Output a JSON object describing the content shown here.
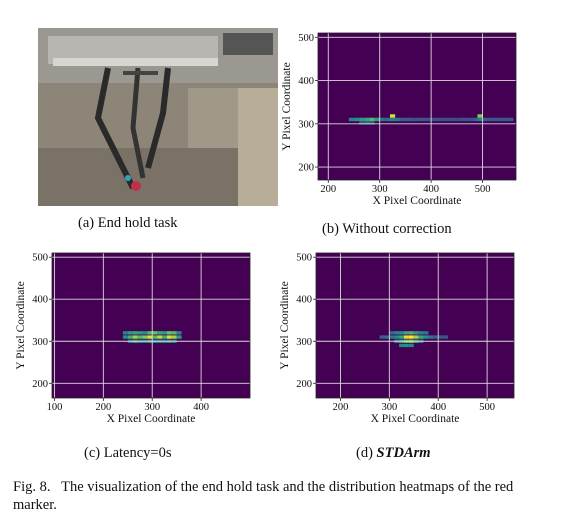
{
  "subcaptions": {
    "a": "(a) End hold task",
    "b": "(b) Without correction",
    "c": "(c) Latency=0s",
    "d_prefix": "(d) ",
    "d_italic": "STDArm"
  },
  "figure_caption": {
    "label": "Fig. 8.",
    "text": "The visualization of the end hold task and the distribution heatmaps of the red marker."
  },
  "colors": {
    "background": "#440154",
    "grid": "#d9d9d9",
    "colormap": [
      "#440154",
      "#3b528b",
      "#21918c",
      "#5ec962",
      "#fde725"
    ]
  },
  "chart_data": [
    {
      "panel": "b",
      "type": "heatmap",
      "xlabel": "X Pixel Coordinate",
      "ylabel": "Y Pixel Coordinate",
      "xlim": [
        180,
        565
      ],
      "ylim": [
        170,
        510
      ],
      "xticks": [
        200,
        300,
        400,
        500
      ],
      "yticks": [
        200,
        300,
        400,
        500
      ],
      "grid": true,
      "cells_note": "intensity 0-1",
      "cells": [
        {
          "x": 245,
          "y": 310,
          "v": 0.45
        },
        {
          "x": 255,
          "y": 310,
          "v": 0.5
        },
        {
          "x": 265,
          "y": 310,
          "v": 0.55
        },
        {
          "x": 275,
          "y": 310,
          "v": 0.6
        },
        {
          "x": 285,
          "y": 310,
          "v": 0.7
        },
        {
          "x": 295,
          "y": 310,
          "v": 0.55
        },
        {
          "x": 305,
          "y": 310,
          "v": 0.4
        },
        {
          "x": 315,
          "y": 310,
          "v": 0.35
        },
        {
          "x": 325,
          "y": 318,
          "v": 0.95
        },
        {
          "x": 325,
          "y": 310,
          "v": 0.45
        },
        {
          "x": 335,
          "y": 310,
          "v": 0.4
        },
        {
          "x": 345,
          "y": 310,
          "v": 0.3
        },
        {
          "x": 355,
          "y": 310,
          "v": 0.3
        },
        {
          "x": 365,
          "y": 310,
          "v": 0.28
        },
        {
          "x": 375,
          "y": 310,
          "v": 0.28
        },
        {
          "x": 385,
          "y": 310,
          "v": 0.26
        },
        {
          "x": 395,
          "y": 310,
          "v": 0.25
        },
        {
          "x": 405,
          "y": 310,
          "v": 0.25
        },
        {
          "x": 415,
          "y": 310,
          "v": 0.25
        },
        {
          "x": 425,
          "y": 310,
          "v": 0.24
        },
        {
          "x": 435,
          "y": 310,
          "v": 0.24
        },
        {
          "x": 445,
          "y": 310,
          "v": 0.24
        },
        {
          "x": 455,
          "y": 310,
          "v": 0.24
        },
        {
          "x": 465,
          "y": 310,
          "v": 0.25
        },
        {
          "x": 475,
          "y": 310,
          "v": 0.26
        },
        {
          "x": 485,
          "y": 310,
          "v": 0.3
        },
        {
          "x": 495,
          "y": 318,
          "v": 0.8
        },
        {
          "x": 495,
          "y": 310,
          "v": 0.45
        },
        {
          "x": 505,
          "y": 310,
          "v": 0.3
        },
        {
          "x": 515,
          "y": 310,
          "v": 0.28
        },
        {
          "x": 525,
          "y": 310,
          "v": 0.28
        },
        {
          "x": 535,
          "y": 310,
          "v": 0.28
        },
        {
          "x": 545,
          "y": 310,
          "v": 0.28
        },
        {
          "x": 555,
          "y": 310,
          "v": 0.28
        },
        {
          "x": 265,
          "y": 302,
          "v": 0.3
        },
        {
          "x": 275,
          "y": 302,
          "v": 0.35
        },
        {
          "x": 285,
          "y": 302,
          "v": 0.3
        }
      ]
    },
    {
      "panel": "c",
      "type": "heatmap",
      "xlabel": "X Pixel Coordinate",
      "ylabel": "Y Pixel Coordinate",
      "xlim": [
        95,
        500
      ],
      "ylim": [
        165,
        510
      ],
      "xticks": [
        100,
        200,
        300,
        400
      ],
      "yticks": [
        200,
        300,
        400,
        500
      ],
      "grid": true,
      "cells": [
        {
          "x": 245,
          "y": 320,
          "v": 0.45
        },
        {
          "x": 255,
          "y": 320,
          "v": 0.55
        },
        {
          "x": 265,
          "y": 320,
          "v": 0.6
        },
        {
          "x": 275,
          "y": 320,
          "v": 0.55
        },
        {
          "x": 285,
          "y": 320,
          "v": 0.5
        },
        {
          "x": 295,
          "y": 320,
          "v": 0.7
        },
        {
          "x": 305,
          "y": 320,
          "v": 0.75
        },
        {
          "x": 315,
          "y": 320,
          "v": 0.6
        },
        {
          "x": 325,
          "y": 320,
          "v": 0.55
        },
        {
          "x": 335,
          "y": 320,
          "v": 0.75
        },
        {
          "x": 345,
          "y": 320,
          "v": 0.7
        },
        {
          "x": 355,
          "y": 320,
          "v": 0.45
        },
        {
          "x": 245,
          "y": 310,
          "v": 0.5
        },
        {
          "x": 255,
          "y": 310,
          "v": 0.65
        },
        {
          "x": 265,
          "y": 310,
          "v": 0.85
        },
        {
          "x": 275,
          "y": 310,
          "v": 0.7
        },
        {
          "x": 285,
          "y": 310,
          "v": 0.8
        },
        {
          "x": 295,
          "y": 310,
          "v": 0.95
        },
        {
          "x": 305,
          "y": 310,
          "v": 0.7
        },
        {
          "x": 315,
          "y": 310,
          "v": 0.9
        },
        {
          "x": 325,
          "y": 310,
          "v": 0.65
        },
        {
          "x": 335,
          "y": 310,
          "v": 0.95
        },
        {
          "x": 345,
          "y": 310,
          "v": 0.85
        },
        {
          "x": 355,
          "y": 310,
          "v": 0.55
        },
        {
          "x": 255,
          "y": 300,
          "v": 0.45
        },
        {
          "x": 265,
          "y": 300,
          "v": 0.6
        },
        {
          "x": 275,
          "y": 300,
          "v": 0.5
        },
        {
          "x": 285,
          "y": 300,
          "v": 0.45
        },
        {
          "x": 295,
          "y": 300,
          "v": 0.55
        },
        {
          "x": 305,
          "y": 300,
          "v": 0.5
        },
        {
          "x": 315,
          "y": 300,
          "v": 0.5
        },
        {
          "x": 325,
          "y": 300,
          "v": 0.45
        },
        {
          "x": 335,
          "y": 300,
          "v": 0.5
        },
        {
          "x": 345,
          "y": 300,
          "v": 0.45
        }
      ]
    },
    {
      "panel": "d",
      "type": "heatmap",
      "xlabel": "X Pixel Coordinate",
      "ylabel": "Y Pixel Coordinate",
      "xlim": [
        150,
        555
      ],
      "ylim": [
        165,
        510
      ],
      "xticks": [
        200,
        300,
        400,
        500
      ],
      "yticks": [
        200,
        300,
        400,
        500
      ],
      "grid": true,
      "cells": [
        {
          "x": 285,
          "y": 310,
          "v": 0.3
        },
        {
          "x": 295,
          "y": 310,
          "v": 0.35
        },
        {
          "x": 305,
          "y": 310,
          "v": 0.4
        },
        {
          "x": 315,
          "y": 310,
          "v": 0.5
        },
        {
          "x": 325,
          "y": 310,
          "v": 0.6
        },
        {
          "x": 335,
          "y": 310,
          "v": 0.95
        },
        {
          "x": 345,
          "y": 310,
          "v": 1.0
        },
        {
          "x": 355,
          "y": 310,
          "v": 0.85
        },
        {
          "x": 365,
          "y": 310,
          "v": 0.6
        },
        {
          "x": 375,
          "y": 310,
          "v": 0.5
        },
        {
          "x": 385,
          "y": 310,
          "v": 0.4
        },
        {
          "x": 395,
          "y": 310,
          "v": 0.3
        },
        {
          "x": 405,
          "y": 310,
          "v": 0.28
        },
        {
          "x": 415,
          "y": 310,
          "v": 0.26
        },
        {
          "x": 305,
          "y": 320,
          "v": 0.35
        },
        {
          "x": 315,
          "y": 320,
          "v": 0.45
        },
        {
          "x": 325,
          "y": 320,
          "v": 0.5
        },
        {
          "x": 335,
          "y": 320,
          "v": 0.6
        },
        {
          "x": 345,
          "y": 320,
          "v": 0.65
        },
        {
          "x": 355,
          "y": 320,
          "v": 0.55
        },
        {
          "x": 365,
          "y": 320,
          "v": 0.45
        },
        {
          "x": 375,
          "y": 320,
          "v": 0.4
        },
        {
          "x": 315,
          "y": 300,
          "v": 0.45
        },
        {
          "x": 325,
          "y": 300,
          "v": 0.6
        },
        {
          "x": 335,
          "y": 300,
          "v": 0.75
        },
        {
          "x": 345,
          "y": 300,
          "v": 0.8
        },
        {
          "x": 355,
          "y": 300,
          "v": 0.6
        },
        {
          "x": 365,
          "y": 300,
          "v": 0.4
        },
        {
          "x": 325,
          "y": 290,
          "v": 0.45
        },
        {
          "x": 335,
          "y": 290,
          "v": 0.5
        },
        {
          "x": 345,
          "y": 290,
          "v": 0.45
        }
      ]
    }
  ]
}
